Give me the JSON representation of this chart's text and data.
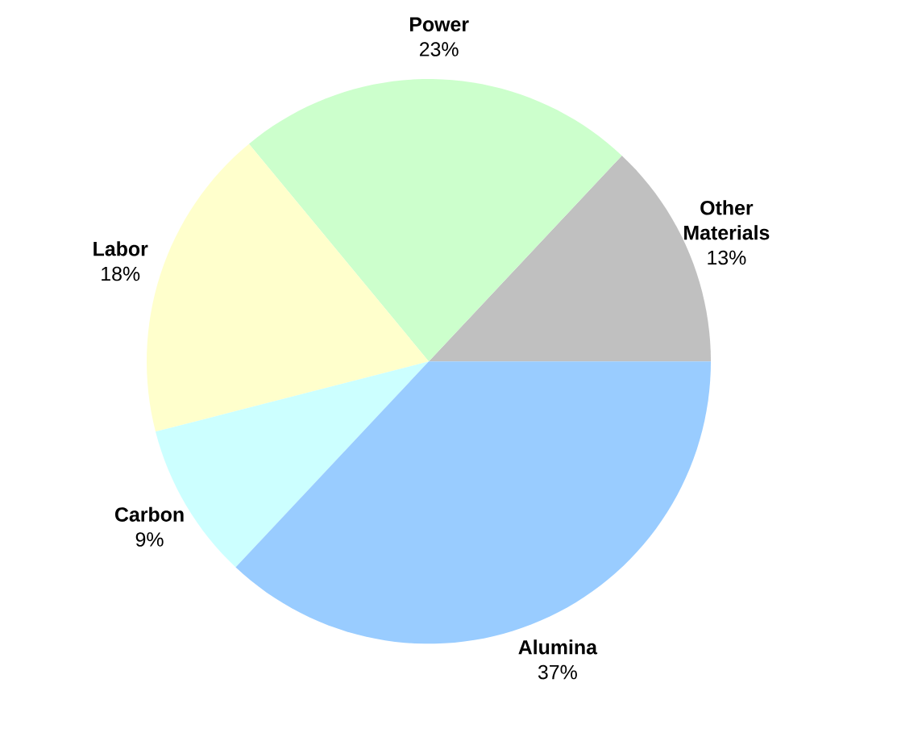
{
  "chart_data": {
    "type": "pie",
    "categories": [
      "Other Materials",
      "Power",
      "Labor",
      "Carbon",
      "Alumina"
    ],
    "values": [
      13,
      23,
      18,
      9,
      37
    ],
    "value_labels": [
      "13%",
      "23%",
      "18%",
      "9%",
      "37%"
    ],
    "colors": [
      "#c0c0c0",
      "#ccffcc",
      "#ffffcc",
      "#ccffff",
      "#99ccff"
    ]
  }
}
